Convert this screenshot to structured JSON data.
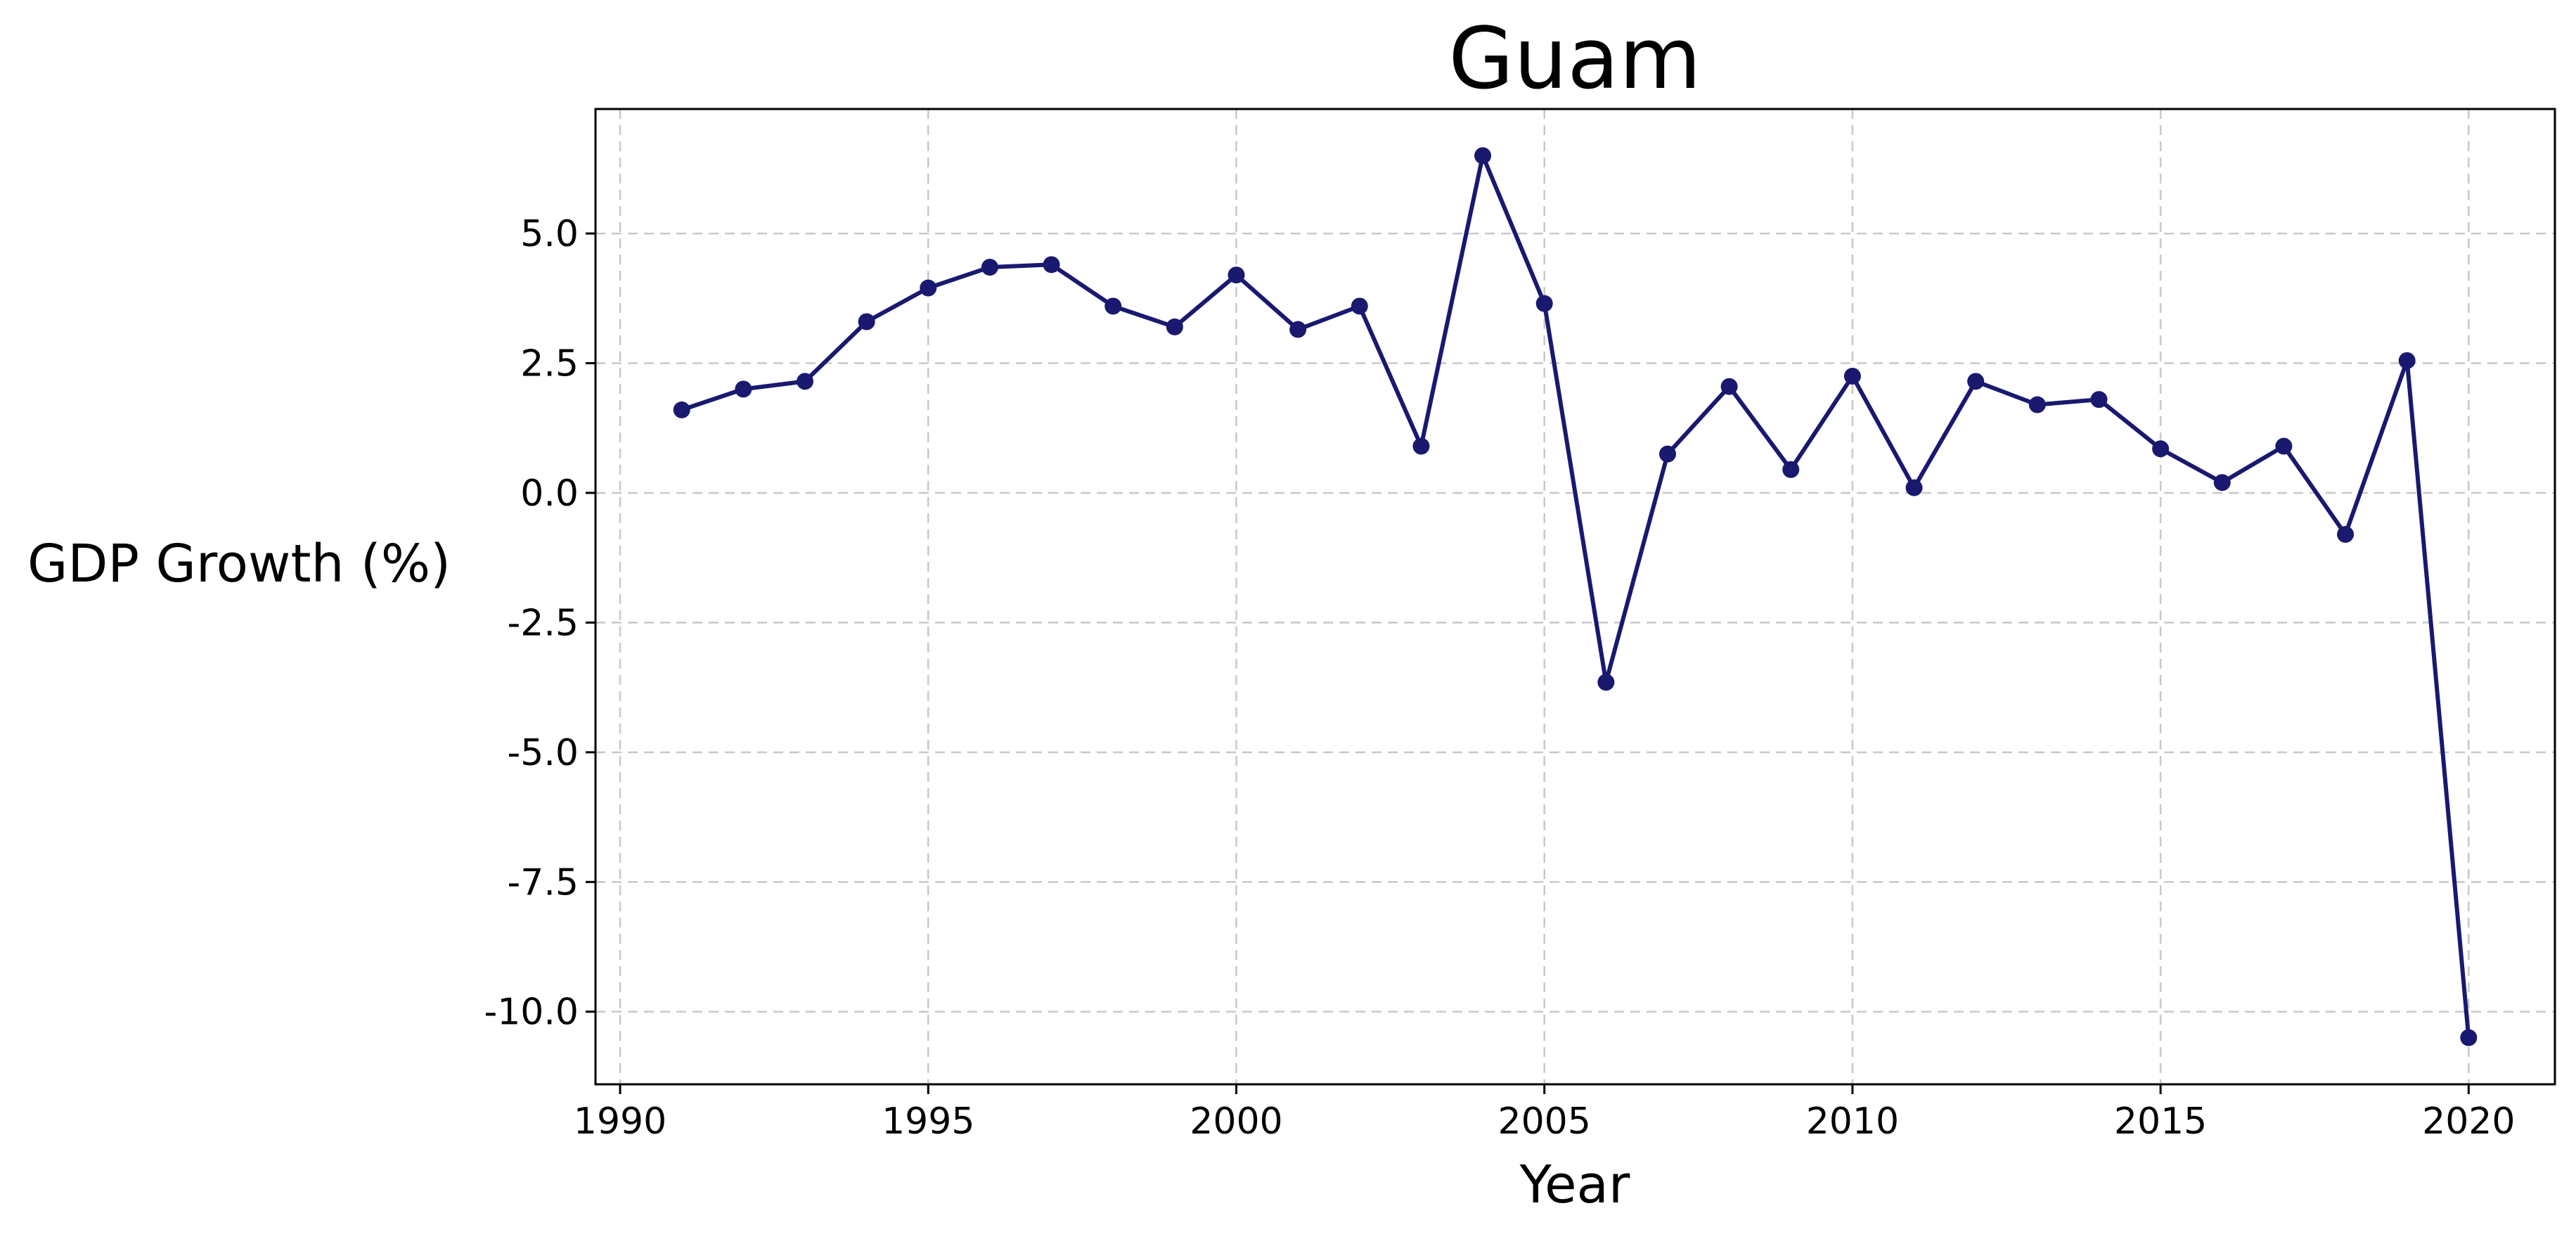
{
  "chart_data": {
    "type": "line",
    "title": "Guam",
    "xlabel": "Year",
    "ylabel": "GDP Growth (%)",
    "xlim": [
      1989.6,
      2021.4
    ],
    "ylim": [
      -11.4,
      7.4
    ],
    "xticks": [
      1990,
      1995,
      2000,
      2005,
      2010,
      2015,
      2020
    ],
    "yticks": [
      5.0,
      2.5,
      0.0,
      -2.5,
      -5.0,
      -7.5,
      -10.0
    ],
    "xtick_labels": [
      "1990",
      "1995",
      "2000",
      "2005",
      "2010",
      "2015",
      "2020"
    ],
    "ytick_labels": [
      "5.0",
      "2.5",
      "0.0",
      "-2.5",
      "-5.0",
      "-7.5",
      "-10.0"
    ],
    "grid": true,
    "line_color": "#191970",
    "x": [
      1991,
      1992,
      1993,
      1994,
      1995,
      1996,
      1997,
      1998,
      1999,
      2000,
      2001,
      2002,
      2003,
      2004,
      2005,
      2006,
      2007,
      2008,
      2009,
      2010,
      2011,
      2012,
      2013,
      2014,
      2015,
      2016,
      2017,
      2018,
      2019,
      2020
    ],
    "series": [
      {
        "values": [
          1.6,
          2.0,
          2.15,
          3.3,
          3.95,
          4.35,
          4.4,
          3.6,
          3.2,
          4.2,
          3.15,
          3.6,
          0.9,
          6.5,
          3.65,
          -3.65,
          0.75,
          2.05,
          0.45,
          2.25,
          0.1,
          2.15,
          1.7,
          1.8,
          0.85,
          0.2,
          0.9,
          -0.8,
          2.55,
          -10.5
        ]
      }
    ]
  }
}
